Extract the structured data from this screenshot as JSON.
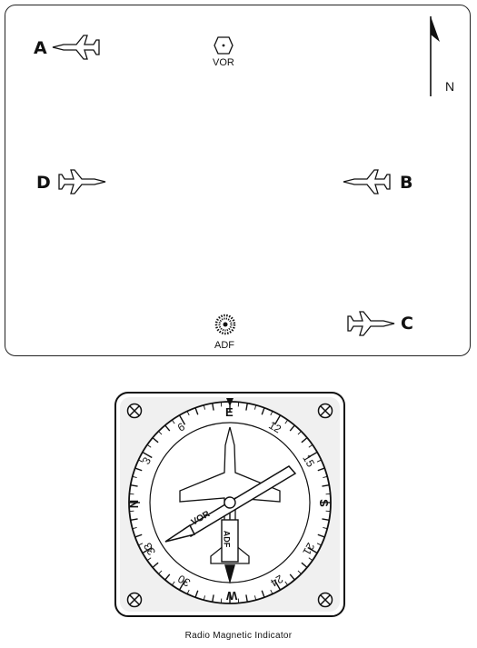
{
  "map": {
    "aircraft": [
      {
        "id": "A",
        "label": "A",
        "heading": "west"
      },
      {
        "id": "B",
        "label": "B",
        "heading": "west"
      },
      {
        "id": "C",
        "label": "C",
        "heading": "east"
      },
      {
        "id": "D",
        "label": "D",
        "heading": "east"
      }
    ],
    "vor_label": "VOR",
    "adf_label": "ADF",
    "north_label": "N"
  },
  "rmi": {
    "cardinal": {
      "n": "N",
      "e": "E",
      "s": "S",
      "w": "W"
    },
    "numbers": [
      "3",
      "6",
      "12",
      "15",
      "21",
      "24",
      "30",
      "33"
    ],
    "vor_needle_label": "VOR",
    "adf_needle_label": "ADF",
    "caption": "Radio Magnetic Indicator"
  }
}
